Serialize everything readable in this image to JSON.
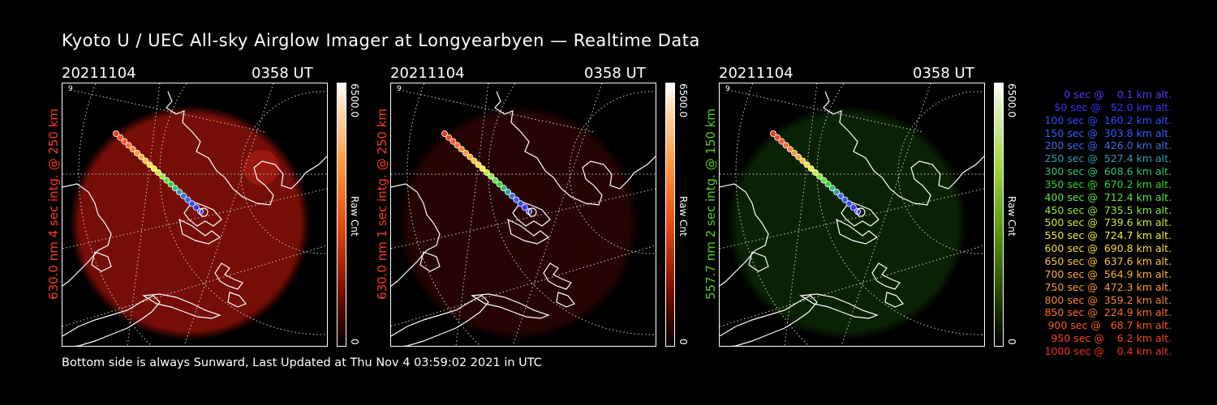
{
  "title": "Kyoto U / UEC All-sky Airglow Imager at Longyearbyen — Realtime Data",
  "footer": "Bottom side is always Sunward, Last Updated at Thu Nov  4 03:59:02 2021 in UTC",
  "panels": [
    {
      "date": "20211104",
      "time": "0358 UT",
      "side_label": "630.0 nm 4 sec intg. @ 250 km",
      "side_label_color": "#ff3b1f",
      "map_id": "9",
      "colorbar": {
        "top": "6500.0",
        "mid": "Raw Cnt",
        "bottom": "0"
      },
      "colormap": "red-hot",
      "glow": {
        "color": "#8a1008",
        "opacity": 0.85
      }
    },
    {
      "date": "20211104",
      "time": "0358 UT",
      "side_label": "630.0 nm 1 sec intg. @ 250 km",
      "side_label_color": "#ff3b1f",
      "map_id": "9",
      "colorbar": {
        "top": "6500.0",
        "mid": "Raw Cnt",
        "bottom": "0"
      },
      "colormap": "red-hot",
      "glow": {
        "color": "#2a0503",
        "opacity": 0.9
      }
    },
    {
      "date": "20211104",
      "time": "0358 UT",
      "side_label": "557.7 nm 2 sec intg. @ 150 km",
      "side_label_color": "#56d01e",
      "map_id": "9",
      "colorbar": {
        "top": "6500.0",
        "mid": "Raw Cnt",
        "bottom": "0"
      },
      "colormap": "green",
      "glow": {
        "color": "#0d2a05",
        "opacity": 0.8
      }
    }
  ],
  "legend": [
    {
      "text": "0 sec @    0.1 km alt.",
      "color": "#4b3bff"
    },
    {
      "text": "50 sec @   52.0 km alt.",
      "color": "#3a34ff"
    },
    {
      "text": "100 sec @  160.2 km alt.",
      "color": "#2e4bff"
    },
    {
      "text": "150 sec @  303.8 km alt.",
      "color": "#3a5cff"
    },
    {
      "text": "200 sec @  426.0 km alt.",
      "color": "#3c6bea"
    },
    {
      "text": "250 sec @  527.4 km alt.",
      "color": "#2f9fb0"
    },
    {
      "text": "300 sec @  608.6 km alt.",
      "color": "#35c070"
    },
    {
      "text": "350 sec @  670.2 km alt.",
      "color": "#2fd62f"
    },
    {
      "text": "400 sec @  712.4 km alt.",
      "color": "#5ee04a"
    },
    {
      "text": "450 sec @  735.5 km alt.",
      "color": "#8fe83b"
    },
    {
      "text": "500 sec @  739.6 km alt.",
      "color": "#c8ec35"
    },
    {
      "text": "550 sec @  724.7 km alt.",
      "color": "#eef03a"
    },
    {
      "text": "600 sec @  690.8 km alt.",
      "color": "#f6dc38"
    },
    {
      "text": "650 sec @  637.6 km alt.",
      "color": "#f8c437"
    },
    {
      "text": "700 sec @  564.9 km alt.",
      "color": "#f8ad35"
    },
    {
      "text": "750 sec @  472.3 km alt.",
      "color": "#f89b34"
    },
    {
      "text": "800 sec @  359.2 km alt.",
      "color": "#f7862f"
    },
    {
      "text": "850 sec @  224.9 km alt.",
      "color": "#f6702c"
    },
    {
      "text": "900 sec @   68.7 km alt.",
      "color": "#f55a28"
    },
    {
      "text": "950 sec @    6.2 km alt.",
      "color": "#f44624"
    },
    {
      "text": "1000 sec @    0.4 km alt.",
      "color": "#f33420"
    }
  ]
}
